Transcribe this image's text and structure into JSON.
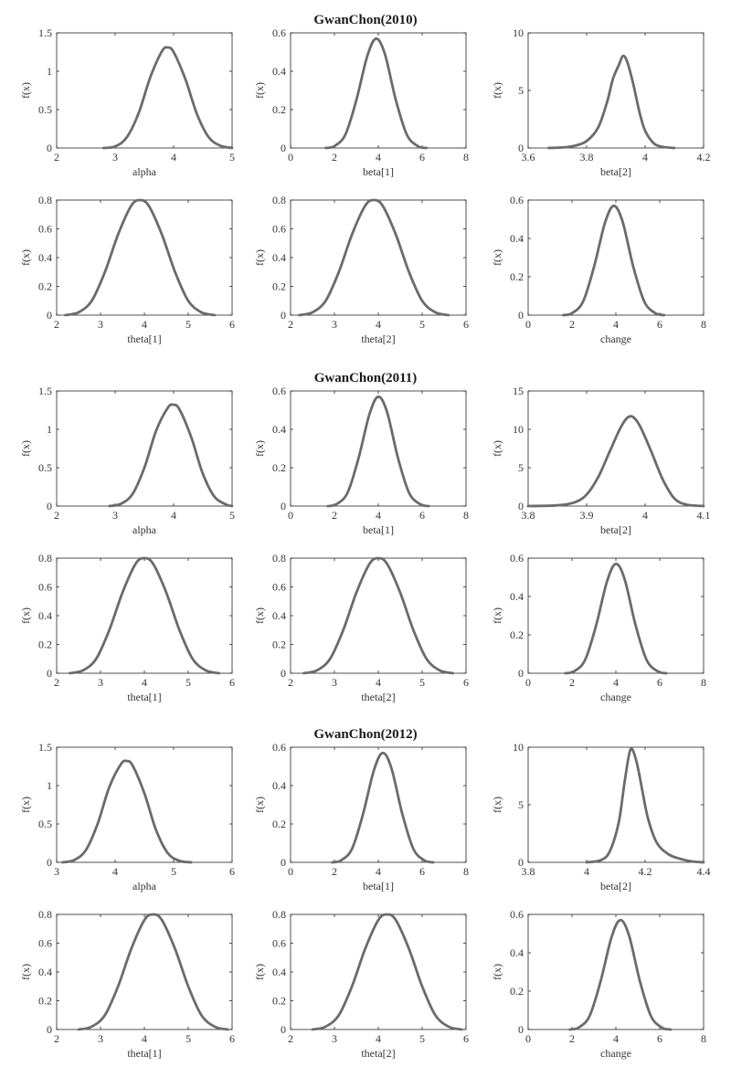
{
  "chart_data": [
    {
      "title": "GwanChon(2010)",
      "panels": [
        {
          "type": "line",
          "xlabel": "alpha",
          "ylabel": "f(x)",
          "xlim": [
            2,
            5
          ],
          "ylim": [
            0,
            1.5
          ],
          "xticks": [
            "2",
            "3",
            "4",
            "5"
          ],
          "yticks": [
            "0",
            "0.5",
            "1",
            "1.5"
          ],
          "x": [
            2.8,
            3.0,
            3.2,
            3.4,
            3.6,
            3.8,
            3.9,
            4.0,
            4.2,
            4.4,
            4.6,
            4.8,
            5.0
          ],
          "y": [
            0.0,
            0.02,
            0.14,
            0.45,
            0.92,
            1.26,
            1.31,
            1.25,
            0.9,
            0.44,
            0.14,
            0.03,
            0.0
          ]
        },
        {
          "type": "line",
          "xlabel": "beta[1]",
          "ylabel": "f(x)",
          "xlim": [
            0,
            8
          ],
          "ylim": [
            0,
            0.6
          ],
          "xticks": [
            "0",
            "2",
            "4",
            "6",
            "8"
          ],
          "yticks": [
            "0",
            "0.2",
            "0.4",
            "0.6"
          ],
          "x": [
            1.6,
            2.0,
            2.5,
            3.0,
            3.5,
            3.9,
            4.3,
            4.8,
            5.3,
            5.8,
            6.2
          ],
          "y": [
            0.0,
            0.01,
            0.07,
            0.25,
            0.48,
            0.57,
            0.49,
            0.25,
            0.07,
            0.01,
            0.0
          ]
        },
        {
          "type": "line",
          "xlabel": "beta[2]",
          "ylabel": "f(x)",
          "xlim": [
            3.6,
            4.2
          ],
          "ylim": [
            0,
            10
          ],
          "xticks": [
            "3.6",
            "3.8",
            "4",
            "4.2"
          ],
          "yticks": [
            "0",
            "5",
            "10"
          ],
          "x": [
            3.67,
            3.72,
            3.76,
            3.8,
            3.84,
            3.87,
            3.89,
            3.91,
            3.925,
            3.94,
            3.96,
            3.98,
            4.0,
            4.03,
            4.06,
            4.1
          ],
          "y": [
            0.0,
            0.05,
            0.2,
            0.6,
            1.8,
            4.0,
            6.0,
            7.2,
            8.0,
            7.4,
            5.5,
            3.2,
            1.5,
            0.4,
            0.1,
            0.0
          ]
        },
        {
          "type": "line",
          "xlabel": "theta[1]",
          "ylabel": "f(x)",
          "xlim": [
            2,
            6
          ],
          "ylim": [
            0,
            0.8
          ],
          "xticks": [
            "2",
            "3",
            "4",
            "5",
            "6"
          ],
          "yticks": [
            "0",
            "0.2",
            "0.4",
            "0.6",
            "0.8"
          ],
          "x": [
            2.2,
            2.5,
            2.8,
            3.1,
            3.4,
            3.7,
            3.9,
            4.1,
            4.4,
            4.7,
            5.0,
            5.3,
            5.6
          ],
          "y": [
            0.0,
            0.02,
            0.1,
            0.3,
            0.56,
            0.76,
            0.8,
            0.76,
            0.56,
            0.3,
            0.1,
            0.02,
            0.0
          ]
        },
        {
          "type": "line",
          "xlabel": "theta[2]",
          "ylabel": "f(x)",
          "xlim": [
            2,
            6
          ],
          "ylim": [
            0,
            0.8
          ],
          "xticks": [
            "2",
            "3",
            "4",
            "5",
            "6"
          ],
          "yticks": [
            "0",
            "0.2",
            "0.4",
            "0.6",
            "0.8"
          ],
          "x": [
            2.2,
            2.5,
            2.8,
            3.1,
            3.4,
            3.7,
            3.9,
            4.1,
            4.4,
            4.7,
            5.0,
            5.3,
            5.6
          ],
          "y": [
            0.0,
            0.02,
            0.1,
            0.3,
            0.56,
            0.76,
            0.8,
            0.76,
            0.56,
            0.3,
            0.1,
            0.02,
            0.0
          ]
        },
        {
          "type": "line",
          "xlabel": "change",
          "ylabel": "f(x)",
          "xlim": [
            0,
            8
          ],
          "ylim": [
            0,
            0.6
          ],
          "xticks": [
            "0",
            "2",
            "4",
            "6",
            "8"
          ],
          "yticks": [
            "0",
            "0.2",
            "0.4",
            "0.6"
          ],
          "x": [
            1.6,
            2.0,
            2.5,
            3.0,
            3.5,
            3.9,
            4.3,
            4.8,
            5.3,
            5.8,
            6.2
          ],
          "y": [
            0.0,
            0.01,
            0.07,
            0.25,
            0.48,
            0.57,
            0.49,
            0.25,
            0.07,
            0.01,
            0.0
          ]
        }
      ]
    },
    {
      "title": "GwanChon(2011)",
      "panels": [
        {
          "type": "line",
          "xlabel": "alpha",
          "ylabel": "f(x)",
          "xlim": [
            2,
            5
          ],
          "ylim": [
            0,
            1.5
          ],
          "xticks": [
            "2",
            "3",
            "4",
            "5"
          ],
          "yticks": [
            "0",
            "0.5",
            "1",
            "1.5"
          ],
          "x": [
            2.9,
            3.1,
            3.3,
            3.5,
            3.7,
            3.9,
            4.0,
            4.1,
            4.3,
            4.5,
            4.7,
            4.9,
            5.0
          ],
          "y": [
            0.0,
            0.03,
            0.16,
            0.5,
            0.98,
            1.28,
            1.32,
            1.26,
            0.9,
            0.42,
            0.12,
            0.02,
            0.0
          ]
        },
        {
          "type": "line",
          "xlabel": "beta[1]",
          "ylabel": "f(x)",
          "xlim": [
            0,
            8
          ],
          "ylim": [
            0,
            0.6
          ],
          "xticks": [
            "0",
            "2",
            "4",
            "6",
            "8"
          ],
          "yticks": [
            "0",
            "0.2",
            "0.4",
            "0.6"
          ],
          "x": [
            1.7,
            2.1,
            2.6,
            3.1,
            3.6,
            4.0,
            4.4,
            4.9,
            5.4,
            5.9,
            6.3
          ],
          "y": [
            0.0,
            0.01,
            0.07,
            0.25,
            0.48,
            0.57,
            0.49,
            0.25,
            0.07,
            0.01,
            0.0
          ]
        },
        {
          "type": "line",
          "xlabel": "beta[2]",
          "ylabel": "f(x)",
          "xlim": [
            3.8,
            4.1
          ],
          "ylim": [
            0,
            15
          ],
          "xticks": [
            "3.8",
            "3.9",
            "4",
            "4.1"
          ],
          "yticks": [
            "0",
            "5",
            "10",
            "15"
          ],
          "x": [
            3.8,
            3.85,
            3.88,
            3.9,
            3.92,
            3.94,
            3.96,
            3.975,
            3.99,
            4.01,
            4.03,
            4.05,
            4.07,
            4.1
          ],
          "y": [
            0.0,
            0.1,
            0.5,
            1.5,
            3.8,
            7.2,
            10.5,
            11.7,
            10.6,
            7.2,
            3.5,
            1.0,
            0.2,
            0.0
          ]
        },
        {
          "type": "line",
          "xlabel": "theta[1]",
          "ylabel": "f(x)",
          "xlim": [
            2,
            6
          ],
          "ylim": [
            0,
            0.8
          ],
          "xticks": [
            "2",
            "3",
            "4",
            "5",
            "6"
          ],
          "yticks": [
            "0",
            "0.2",
            "0.4",
            "0.6",
            "0.8"
          ],
          "x": [
            2.3,
            2.6,
            2.9,
            3.2,
            3.5,
            3.8,
            4.0,
            4.2,
            4.5,
            4.8,
            5.1,
            5.4,
            5.7
          ],
          "y": [
            0.0,
            0.02,
            0.1,
            0.3,
            0.56,
            0.76,
            0.8,
            0.76,
            0.56,
            0.3,
            0.1,
            0.02,
            0.0
          ]
        },
        {
          "type": "line",
          "xlabel": "theta[2]",
          "ylabel": "f(x)",
          "xlim": [
            2,
            6
          ],
          "ylim": [
            0,
            0.8
          ],
          "xticks": [
            "2",
            "3",
            "4",
            "5",
            "6"
          ],
          "yticks": [
            "0",
            "0.2",
            "0.4",
            "0.6",
            "0.8"
          ],
          "x": [
            2.3,
            2.6,
            2.9,
            3.2,
            3.5,
            3.8,
            4.0,
            4.2,
            4.5,
            4.8,
            5.1,
            5.4,
            5.7
          ],
          "y": [
            0.0,
            0.02,
            0.1,
            0.3,
            0.56,
            0.76,
            0.8,
            0.76,
            0.56,
            0.3,
            0.1,
            0.02,
            0.0
          ]
        },
        {
          "type": "line",
          "xlabel": "change",
          "ylabel": "f(x)",
          "xlim": [
            0,
            8
          ],
          "ylim": [
            0,
            0.6
          ],
          "xticks": [
            "0",
            "2",
            "4",
            "6",
            "8"
          ],
          "yticks": [
            "0",
            "0.2",
            "0.4",
            "0.6"
          ],
          "x": [
            1.7,
            2.1,
            2.6,
            3.1,
            3.6,
            4.0,
            4.4,
            4.9,
            5.4,
            5.9,
            6.3
          ],
          "y": [
            0.0,
            0.01,
            0.07,
            0.25,
            0.48,
            0.57,
            0.49,
            0.25,
            0.07,
            0.01,
            0.0
          ]
        }
      ]
    },
    {
      "title": "GwanChon(2012)",
      "panels": [
        {
          "type": "line",
          "xlabel": "alpha",
          "ylabel": "f(x)",
          "xlim": [
            3,
            6
          ],
          "ylim": [
            0,
            1.5
          ],
          "xticks": [
            "3",
            "4",
            "5",
            "6"
          ],
          "yticks": [
            "0",
            "0.5",
            "1",
            "1.5"
          ],
          "x": [
            3.1,
            3.3,
            3.5,
            3.7,
            3.9,
            4.1,
            4.2,
            4.3,
            4.5,
            4.7,
            4.9,
            5.1,
            5.3
          ],
          "y": [
            0.0,
            0.03,
            0.16,
            0.5,
            0.98,
            1.28,
            1.32,
            1.26,
            0.9,
            0.42,
            0.12,
            0.02,
            0.0
          ]
        },
        {
          "type": "line",
          "xlabel": "beta[1]",
          "ylabel": "f(x)",
          "xlim": [
            0,
            8
          ],
          "ylim": [
            0,
            0.6
          ],
          "xticks": [
            "0",
            "2",
            "4",
            "6",
            "8"
          ],
          "yticks": [
            "0",
            "0.2",
            "0.4",
            "0.6"
          ],
          "x": [
            1.9,
            2.3,
            2.8,
            3.3,
            3.8,
            4.2,
            4.6,
            5.1,
            5.6,
            6.1,
            6.5
          ],
          "y": [
            0.0,
            0.01,
            0.07,
            0.25,
            0.48,
            0.57,
            0.49,
            0.25,
            0.07,
            0.01,
            0.0
          ]
        },
        {
          "type": "line",
          "xlabel": "beta[2]",
          "ylabel": "f(x)",
          "xlim": [
            3.8,
            4.4
          ],
          "ylim": [
            0,
            10
          ],
          "xticks": [
            "3.8",
            "4",
            "4.2",
            "4.4"
          ],
          "yticks": [
            "0",
            "5",
            "10"
          ],
          "x": [
            4.0,
            4.05,
            4.08,
            4.11,
            4.13,
            4.15,
            4.17,
            4.19,
            4.21,
            4.24,
            4.28,
            4.32,
            4.36,
            4.4
          ],
          "y": [
            0.0,
            0.2,
            1.0,
            3.5,
            7.0,
            9.8,
            8.8,
            6.3,
            3.8,
            1.7,
            0.7,
            0.3,
            0.08,
            0.0
          ]
        },
        {
          "type": "line",
          "xlabel": "theta[1]",
          "ylabel": "f(x)",
          "xlim": [
            2,
            6
          ],
          "ylim": [
            0,
            0.8
          ],
          "xticks": [
            "2",
            "3",
            "4",
            "5",
            "6"
          ],
          "yticks": [
            "0",
            "0.2",
            "0.4",
            "0.6",
            "0.8"
          ],
          "x": [
            2.5,
            2.8,
            3.1,
            3.4,
            3.7,
            4.0,
            4.2,
            4.4,
            4.7,
            5.0,
            5.3,
            5.6,
            5.9
          ],
          "y": [
            0.0,
            0.02,
            0.1,
            0.3,
            0.56,
            0.76,
            0.8,
            0.76,
            0.56,
            0.3,
            0.1,
            0.02,
            0.0
          ]
        },
        {
          "type": "line",
          "xlabel": "theta[2]",
          "ylabel": "f(x)",
          "xlim": [
            2,
            6
          ],
          "ylim": [
            0,
            0.8
          ],
          "xticks": [
            "2",
            "3",
            "4",
            "5",
            "6"
          ],
          "yticks": [
            "0",
            "0.2",
            "0.4",
            "0.6",
            "0.8"
          ],
          "x": [
            2.5,
            2.8,
            3.1,
            3.4,
            3.7,
            4.0,
            4.2,
            4.4,
            4.7,
            5.0,
            5.3,
            5.6,
            5.9
          ],
          "y": [
            0.0,
            0.02,
            0.1,
            0.3,
            0.56,
            0.76,
            0.8,
            0.76,
            0.56,
            0.3,
            0.1,
            0.02,
            0.0
          ]
        },
        {
          "type": "line",
          "xlabel": "change",
          "ylabel": "f(x)",
          "xlim": [
            0,
            8
          ],
          "ylim": [
            0,
            0.6
          ],
          "xticks": [
            "0",
            "2",
            "4",
            "6",
            "8"
          ],
          "yticks": [
            "0",
            "0.2",
            "0.4",
            "0.6"
          ],
          "x": [
            1.9,
            2.3,
            2.8,
            3.3,
            3.8,
            4.2,
            4.6,
            5.1,
            5.6,
            6.1,
            6.5
          ],
          "y": [
            0.0,
            0.01,
            0.07,
            0.25,
            0.48,
            0.57,
            0.49,
            0.25,
            0.07,
            0.01,
            0.0
          ]
        }
      ]
    }
  ]
}
